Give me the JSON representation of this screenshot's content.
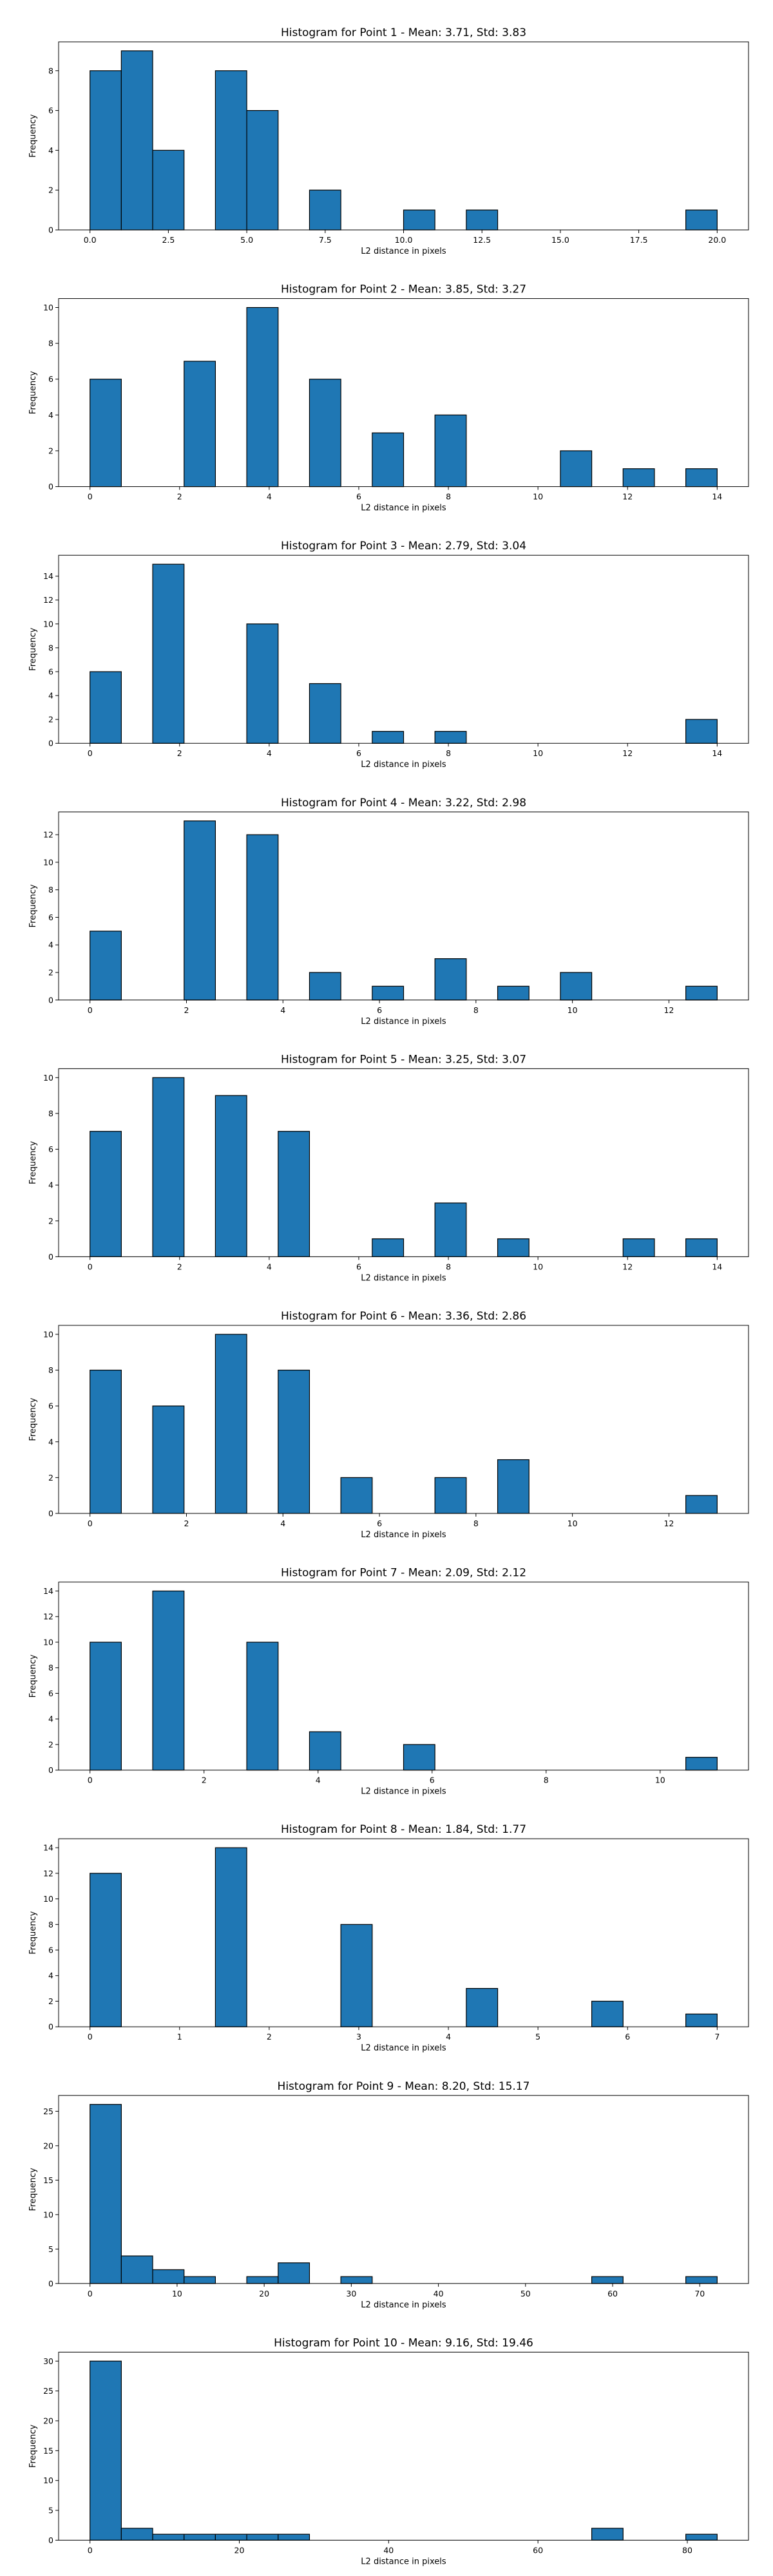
{
  "chart_data": [
    {
      "type": "bar",
      "title": "Histogram for Point 1 - Mean: 3.71, Std: 3.83",
      "xlabel": "L2 distance in pixels",
      "ylabel": "Frequency",
      "bar_color": "#1f77b4",
      "bin_edges": [
        0,
        1,
        2,
        3,
        4,
        5,
        6,
        7,
        8,
        9,
        10,
        11,
        12,
        13,
        14,
        15,
        16,
        17,
        18,
        19,
        20
      ],
      "values": [
        8,
        9,
        4,
        0,
        8,
        6,
        0,
        2,
        0,
        0,
        1,
        0,
        1,
        0,
        0,
        0,
        0,
        0,
        0,
        1
      ],
      "xlim": [
        -1,
        21
      ],
      "ylim": [
        0,
        9.45
      ],
      "xticks": [
        0.0,
        2.5,
        5.0,
        7.5,
        10.0,
        12.5,
        15.0,
        17.5,
        20.0
      ],
      "xtick_labels": [
        "0.0",
        "2.5",
        "5.0",
        "7.5",
        "10.0",
        "12.5",
        "15.0",
        "17.5",
        "20.0"
      ],
      "yticks": [
        0,
        2,
        4,
        6,
        8
      ],
      "ytick_labels": [
        "0",
        "2",
        "4",
        "6",
        "8"
      ]
    },
    {
      "type": "bar",
      "title": "Histogram for Point 2 - Mean: 3.85, Std: 3.27",
      "xlabel": "L2 distance in pixels",
      "ylabel": "Frequency",
      "bar_color": "#1f77b4",
      "bin_edges": [
        0,
        0.7,
        1.4,
        2.1,
        2.8,
        3.5,
        4.2,
        4.9,
        5.6,
        6.3,
        7.0,
        7.7,
        8.4,
        9.1,
        9.8,
        10.5,
        11.2,
        11.9,
        12.6,
        13.3,
        14.0
      ],
      "values": [
        6,
        0,
        0,
        7,
        0,
        10,
        0,
        6,
        0,
        3,
        0,
        4,
        0,
        0,
        0,
        2,
        0,
        1,
        0,
        1
      ],
      "xlim": [
        -0.7,
        14.7
      ],
      "ylim": [
        0,
        10.5
      ],
      "xticks": [
        0,
        2,
        4,
        6,
        8,
        10,
        12,
        14
      ],
      "xtick_labels": [
        "0",
        "2",
        "4",
        "6",
        "8",
        "10",
        "12",
        "14"
      ],
      "yticks": [
        0,
        2,
        4,
        6,
        8,
        10
      ],
      "ytick_labels": [
        "0",
        "2",
        "4",
        "6",
        "8",
        "10"
      ]
    },
    {
      "type": "bar",
      "title": "Histogram for Point 3 - Mean: 2.79, Std: 3.04",
      "xlabel": "L2 distance in pixels",
      "ylabel": "Frequency",
      "bar_color": "#1f77b4",
      "bin_edges": [
        0,
        0.7,
        1.4,
        2.1,
        2.8,
        3.5,
        4.2,
        4.9,
        5.6,
        6.3,
        7.0,
        7.7,
        8.4,
        9.1,
        9.8,
        10.5,
        11.2,
        11.9,
        12.6,
        13.3,
        14.0
      ],
      "values": [
        6,
        0,
        15,
        0,
        0,
        10,
        0,
        5,
        0,
        1,
        0,
        1,
        0,
        0,
        0,
        0,
        0,
        0,
        0,
        2
      ],
      "xlim": [
        -0.7,
        14.7
      ],
      "ylim": [
        0,
        15.75
      ],
      "xticks": [
        0,
        2,
        4,
        6,
        8,
        10,
        12,
        14
      ],
      "xtick_labels": [
        "0",
        "2",
        "4",
        "6",
        "8",
        "10",
        "12",
        "14"
      ],
      "yticks": [
        0,
        2,
        4,
        6,
        8,
        10,
        12,
        14
      ],
      "ytick_labels": [
        "0",
        "2",
        "4",
        "6",
        "8",
        "10",
        "12",
        "14"
      ]
    },
    {
      "type": "bar",
      "title": "Histogram for Point 4 - Mean: 3.22, Std: 2.98",
      "xlabel": "L2 distance in pixels",
      "ylabel": "Frequency",
      "bar_color": "#1f77b4",
      "bin_edges": [
        0,
        0.65,
        1.3,
        1.95,
        2.6,
        3.25,
        3.9,
        4.55,
        5.2,
        5.85,
        6.5,
        7.15,
        7.8,
        8.45,
        9.1,
        9.75,
        10.4,
        11.05,
        11.7,
        12.35,
        13.0
      ],
      "values": [
        5,
        0,
        0,
        13,
        0,
        12,
        0,
        2,
        0,
        1,
        0,
        3,
        0,
        1,
        0,
        2,
        0,
        0,
        0,
        1
      ],
      "xlim": [
        -0.65,
        13.65
      ],
      "ylim": [
        0,
        13.65
      ],
      "xticks": [
        0,
        2,
        4,
        6,
        8,
        10,
        12
      ],
      "xtick_labels": [
        "0",
        "2",
        "4",
        "6",
        "8",
        "10",
        "12"
      ],
      "yticks": [
        0,
        2,
        4,
        6,
        8,
        10,
        12
      ],
      "ytick_labels": [
        "0",
        "2",
        "4",
        "6",
        "8",
        "10",
        "12"
      ]
    },
    {
      "type": "bar",
      "title": "Histogram for Point 5 - Mean: 3.25, Std: 3.07",
      "xlabel": "L2 distance in pixels",
      "ylabel": "Frequency",
      "bar_color": "#1f77b4",
      "bin_edges": [
        0,
        0.7,
        1.4,
        2.1,
        2.8,
        3.5,
        4.2,
        4.9,
        5.6,
        6.3,
        7.0,
        7.7,
        8.4,
        9.1,
        9.8,
        10.5,
        11.2,
        11.9,
        12.6,
        13.3,
        14.0
      ],
      "values": [
        7,
        0,
        10,
        0,
        9,
        0,
        7,
        0,
        0,
        1,
        0,
        3,
        0,
        1,
        0,
        0,
        0,
        1,
        0,
        1
      ],
      "xlim": [
        -0.7,
        14.7
      ],
      "ylim": [
        0,
        10.5
      ],
      "xticks": [
        0,
        2,
        4,
        6,
        8,
        10,
        12,
        14
      ],
      "xtick_labels": [
        "0",
        "2",
        "4",
        "6",
        "8",
        "10",
        "12",
        "14"
      ],
      "yticks": [
        0,
        2,
        4,
        6,
        8,
        10
      ],
      "ytick_labels": [
        "0",
        "2",
        "4",
        "6",
        "8",
        "10"
      ]
    },
    {
      "type": "bar",
      "title": "Histogram for Point 6 - Mean: 3.36, Std: 2.86",
      "xlabel": "L2 distance in pixels",
      "ylabel": "Frequency",
      "bar_color": "#1f77b4",
      "bin_edges": [
        0,
        0.65,
        1.3,
        1.95,
        2.6,
        3.25,
        3.9,
        4.55,
        5.2,
        5.85,
        6.5,
        7.15,
        7.8,
        8.45,
        9.1,
        9.75,
        10.4,
        11.05,
        11.7,
        12.35,
        13.0
      ],
      "values": [
        8,
        0,
        6,
        0,
        10,
        0,
        8,
        0,
        2,
        0,
        0,
        2,
        0,
        3,
        0,
        0,
        0,
        0,
        0,
        1
      ],
      "xlim": [
        -0.65,
        13.65
      ],
      "ylim": [
        0,
        10.5
      ],
      "xticks": [
        0,
        2,
        4,
        6,
        8,
        10,
        12
      ],
      "xtick_labels": [
        "0",
        "2",
        "4",
        "6",
        "8",
        "10",
        "12"
      ],
      "yticks": [
        0,
        2,
        4,
        6,
        8,
        10
      ],
      "ytick_labels": [
        "0",
        "2",
        "4",
        "6",
        "8",
        "10"
      ]
    },
    {
      "type": "bar",
      "title": "Histogram for Point 7 - Mean: 2.09, Std: 2.12",
      "xlabel": "L2 distance in pixels",
      "ylabel": "Frequency",
      "bar_color": "#1f77b4",
      "bin_edges": [
        0,
        0.55,
        1.1,
        1.65,
        2.2,
        2.75,
        3.3,
        3.85,
        4.4,
        4.95,
        5.5,
        6.05,
        6.6,
        7.15,
        7.7,
        8.25,
        8.8,
        9.35,
        9.9,
        10.45,
        11.0
      ],
      "values": [
        10,
        0,
        14,
        0,
        0,
        10,
        0,
        3,
        0,
        0,
        2,
        0,
        0,
        0,
        0,
        0,
        0,
        0,
        0,
        1
      ],
      "xlim": [
        -0.55,
        11.55
      ],
      "ylim": [
        0,
        14.7
      ],
      "xticks": [
        0,
        2,
        4,
        6,
        8,
        10
      ],
      "xtick_labels": [
        "0",
        "2",
        "4",
        "6",
        "8",
        "10"
      ],
      "yticks": [
        0,
        2,
        4,
        6,
        8,
        10,
        12,
        14
      ],
      "ytick_labels": [
        "0",
        "2",
        "4",
        "6",
        "8",
        "10",
        "12",
        "14"
      ]
    },
    {
      "type": "bar",
      "title": "Histogram for Point 8 - Mean: 1.84, Std: 1.77",
      "xlabel": "L2 distance in pixels",
      "ylabel": "Frequency",
      "bar_color": "#1f77b4",
      "bin_edges": [
        0,
        0.35,
        0.7,
        1.05,
        1.4,
        1.75,
        2.1,
        2.45,
        2.8,
        3.15,
        3.5,
        3.85,
        4.2,
        4.55,
        4.9,
        5.25,
        5.6,
        5.95,
        6.3,
        6.65,
        7.0
      ],
      "values": [
        12,
        0,
        0,
        0,
        14,
        0,
        0,
        0,
        8,
        0,
        0,
        0,
        3,
        0,
        0,
        0,
        2,
        0,
        0,
        1
      ],
      "xlim": [
        -0.35,
        7.35
      ],
      "ylim": [
        0,
        14.7
      ],
      "xticks": [
        0,
        1,
        2,
        3,
        4,
        5,
        6,
        7
      ],
      "xtick_labels": [
        "0",
        "1",
        "2",
        "3",
        "4",
        "5",
        "6",
        "7"
      ],
      "yticks": [
        0,
        2,
        4,
        6,
        8,
        10,
        12,
        14
      ],
      "ytick_labels": [
        "0",
        "2",
        "4",
        "6",
        "8",
        "10",
        "12",
        "14"
      ]
    },
    {
      "type": "bar",
      "title": "Histogram for Point 9 - Mean: 8.20, Std: 15.17",
      "xlabel": "L2 distance in pixels",
      "ylabel": "Frequency",
      "bar_color": "#1f77b4",
      "bin_edges": [
        0,
        3.6,
        7.2,
        10.8,
        14.4,
        18.0,
        21.6,
        25.2,
        28.8,
        32.4,
        36.0,
        39.6,
        43.2,
        46.8,
        50.4,
        54.0,
        57.6,
        61.2,
        64.8,
        68.4,
        72.0
      ],
      "values": [
        26,
        4,
        2,
        1,
        0,
        1,
        3,
        0,
        1,
        0,
        0,
        0,
        0,
        0,
        0,
        0,
        1,
        0,
        0,
        1
      ],
      "xlim": [
        -3.6,
        75.6
      ],
      "ylim": [
        0,
        27.3
      ],
      "xticks": [
        0,
        10,
        20,
        30,
        40,
        50,
        60,
        70
      ],
      "xtick_labels": [
        "0",
        "10",
        "20",
        "30",
        "40",
        "50",
        "60",
        "70"
      ],
      "yticks": [
        0,
        5,
        10,
        15,
        20,
        25
      ],
      "ytick_labels": [
        "0",
        "5",
        "10",
        "15",
        "20",
        "25"
      ]
    },
    {
      "type": "bar",
      "title": "Histogram for Point 10 - Mean: 9.16, Std: 19.46",
      "xlabel": "L2 distance in pixels",
      "ylabel": "Frequency",
      "bar_color": "#1f77b4",
      "bin_edges": [
        0,
        4.2,
        8.4,
        12.6,
        16.8,
        21.0,
        25.2,
        29.4,
        33.6,
        37.8,
        42.0,
        46.2,
        50.4,
        54.6,
        58.8,
        63.0,
        67.2,
        71.4,
        75.6,
        79.8,
        84.0
      ],
      "values": [
        30,
        2,
        1,
        1,
        1,
        1,
        1,
        0,
        0,
        0,
        0,
        0,
        0,
        0,
        0,
        0,
        2,
        0,
        0,
        1
      ],
      "xlim": [
        -4.2,
        88.2
      ],
      "ylim": [
        0,
        31.5
      ],
      "xticks": [
        0,
        20,
        40,
        60,
        80
      ],
      "xtick_labels": [
        "0",
        "20",
        "40",
        "60",
        "80"
      ],
      "yticks": [
        0,
        5,
        10,
        15,
        20,
        25,
        30
      ],
      "ytick_labels": [
        "0",
        "5",
        "10",
        "15",
        "20",
        "25",
        "30"
      ]
    }
  ]
}
